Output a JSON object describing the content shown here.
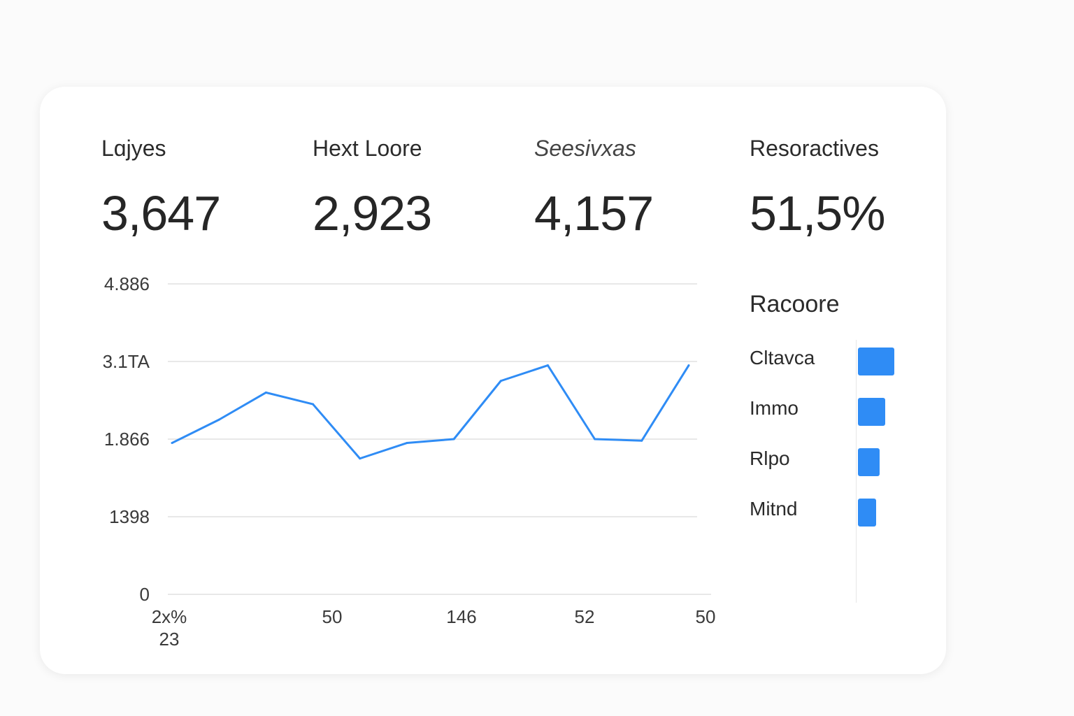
{
  "kpis": [
    {
      "label": "Lɑjyes",
      "value": "3,647",
      "italic": false
    },
    {
      "label": "Hext Loore",
      "value": "2,923",
      "italic": false
    },
    {
      "label": "Seesivxas",
      "value": "4,157",
      "italic": true
    },
    {
      "label": "Resoractives",
      "value": "51,5%",
      "italic": false
    }
  ],
  "chart_data": {
    "type": "line",
    "y_tick_labels": [
      "4.886",
      "3.1TA",
      "1.866",
      "1398",
      "0"
    ],
    "x_tick_labels": [
      "2x% 23",
      "50",
      "146",
      "52",
      "50"
    ],
    "ylim": [
      0,
      4
    ],
    "grid": true,
    "series": [
      {
        "color": "#2f8cf5",
        "values": [
          1.95,
          2.25,
          2.6,
          2.45,
          1.75,
          1.95,
          2.0,
          2.75,
          2.95,
          2.0,
          1.98,
          2.95
        ]
      }
    ]
  },
  "legend": {
    "title": "Racoore",
    "items": [
      {
        "label": "Cltavca",
        "value": 1.0
      },
      {
        "label": "Immo",
        "value": 0.75
      },
      {
        "label": "Rlpo",
        "value": 0.6
      },
      {
        "label": "Mitnd",
        "value": 0.5
      }
    ],
    "bar_color": "#2f8cf5"
  }
}
